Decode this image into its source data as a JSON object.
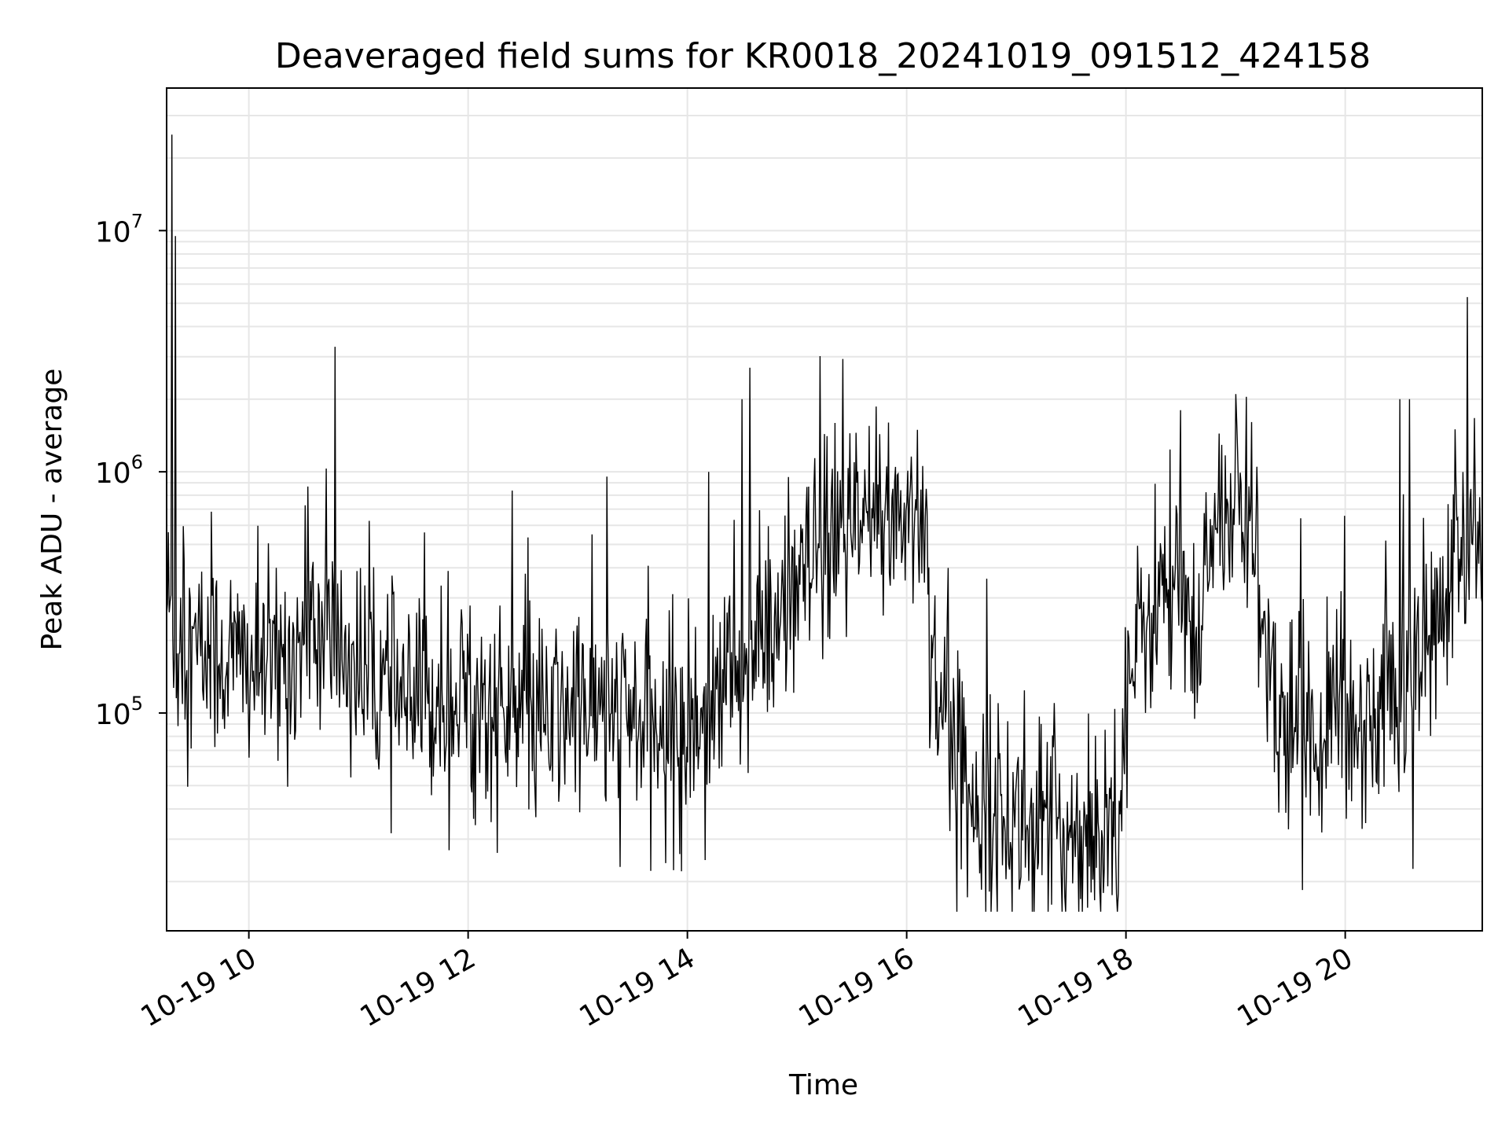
{
  "chart_data": {
    "type": "line",
    "title": "Deaveraged field sums for KR0018_20241019_091512_424158",
    "xlabel": "Time",
    "ylabel": "Peak ADU - average",
    "yscale": "log",
    "ylim": [
      12500,
      39000000
    ],
    "xlim": [
      "2024-10-19 09:15",
      "2024-10-19 21:15"
    ],
    "grid": true,
    "x_ticks": [
      {
        "label": "10-19 10",
        "value": "2024-10-19 10:00"
      },
      {
        "label": "10-19 12",
        "value": "2024-10-19 12:00"
      },
      {
        "label": "10-19 14",
        "value": "2024-10-19 14:00"
      },
      {
        "label": "10-19 16",
        "value": "2024-10-19 16:00"
      },
      {
        "label": "10-19 18",
        "value": "2024-10-19 18:00"
      },
      {
        "label": "10-19 20",
        "value": "2024-10-19 20:00"
      }
    ],
    "y_ticks": [
      {
        "base": "10",
        "exp": "5",
        "value": 100000
      },
      {
        "base": "10",
        "exp": "6",
        "value": 1000000
      },
      {
        "base": "10",
        "exp": "7",
        "value": 10000000
      }
    ],
    "series": [
      {
        "color": "#000000",
        "x": [
          "09:15",
          "09:20",
          "09:30",
          "09:45",
          "10:00",
          "10:15",
          "10:30",
          "10:45",
          "11:00",
          "11:15",
          "11:30",
          "11:45",
          "12:00",
          "12:15",
          "12:30",
          "12:45",
          "13:00",
          "13:15",
          "13:30",
          "13:45",
          "14:00",
          "14:15",
          "14:30",
          "14:45",
          "15:00",
          "15:15",
          "15:30",
          "15:45",
          "16:00",
          "16:10",
          "16:15",
          "16:30",
          "16:45",
          "17:00",
          "17:15",
          "17:30",
          "17:45",
          "17:55",
          "18:00",
          "18:15",
          "18:30",
          "18:40",
          "18:45",
          "19:00",
          "19:10",
          "19:15",
          "19:30",
          "19:45",
          "20:00",
          "20:15",
          "20:30",
          "20:45",
          "21:00",
          "21:15"
        ],
        "y": [
          300000,
          200000,
          180000,
          170000,
          160000,
          150000,
          200000,
          200000,
          150000,
          120000,
          100000,
          120000,
          110000,
          100000,
          95000,
          90000,
          110000,
          100000,
          95000,
          80000,
          80000,
          120000,
          150000,
          200000,
          300000,
          500000,
          550000,
          600000,
          700000,
          650000,
          150000,
          55000,
          40000,
          35000,
          34000,
          32000,
          33000,
          40000,
          120000,
          300000,
          320000,
          120000,
          600000,
          700000,
          650000,
          180000,
          80000,
          90000,
          85000,
          100000,
          130000,
          180000,
          380000,
          550000
        ],
        "spikes": [
          {
            "x": "09:18",
            "y": 25000000
          },
          {
            "x": "09:20",
            "y": 9500000
          },
          {
            "x": "10:47",
            "y": 3300000
          },
          {
            "x": "14:30",
            "y": 2000000
          },
          {
            "x": "14:34",
            "y": 2700000
          },
          {
            "x": "15:50",
            "y": 1600000
          },
          {
            "x": "18:30",
            "y": 1800000
          },
          {
            "x": "19:00",
            "y": 2100000
          },
          {
            "x": "20:30",
            "y": 2000000
          },
          {
            "x": "20:35",
            "y": 2000000
          },
          {
            "x": "21:00",
            "y": 1500000
          },
          {
            "x": "21:07",
            "y": 5300000
          }
        ]
      }
    ]
  }
}
